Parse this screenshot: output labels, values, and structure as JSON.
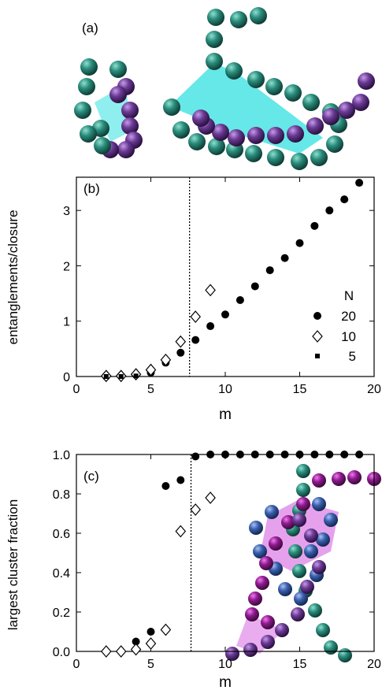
{
  "panel_a": {
    "label": "(a)"
  },
  "colors": {
    "teal": "#2a8c7c",
    "purple": "#6a3a94",
    "magenta": "#8e1a8e",
    "blue": "#3a5fae",
    "cyan_fill": "#33e0e0",
    "pink_fill": "#e08ae8"
  },
  "chart_data": [
    {
      "type": "scatter",
      "panel_label": "(b)",
      "xlabel": "m",
      "ylabel": "entanglements/closure",
      "xlim": [
        0,
        20
      ],
      "ylim": [
        0,
        3.6
      ],
      "xticks": [
        0,
        5,
        10,
        15,
        20
      ],
      "yticks": [
        0,
        1,
        2,
        3
      ],
      "vline_x": 7.6,
      "legend_title": "N",
      "legend_position": "right",
      "series": [
        {
          "name": "20",
          "marker": "filled-circle",
          "x": [
            2,
            3,
            4,
            5,
            6,
            7,
            8,
            9,
            10,
            11,
            12,
            13,
            14,
            15,
            16,
            17,
            18,
            19
          ],
          "y": [
            0.0,
            0.01,
            0.03,
            0.07,
            0.25,
            0.43,
            0.66,
            0.91,
            1.12,
            1.38,
            1.63,
            1.92,
            2.14,
            2.41,
            2.72,
            3.0,
            3.2,
            3.5
          ]
        },
        {
          "name": "10",
          "marker": "open-diamond",
          "x": [
            2,
            3,
            4,
            5,
            6,
            7,
            8,
            9
          ],
          "y": [
            0.01,
            0.01,
            0.04,
            0.12,
            0.3,
            0.63,
            1.08,
            1.56
          ]
        },
        {
          "name": "5",
          "marker": "filled-square",
          "x": [
            2,
            3,
            4
          ],
          "y": [
            0.0,
            0.0,
            0.01
          ]
        }
      ]
    },
    {
      "type": "scatter",
      "panel_label": "(c)",
      "xlabel": "m",
      "ylabel": "largest cluster fraction",
      "xlim": [
        0,
        20
      ],
      "ylim": [
        0,
        1.0
      ],
      "xticks": [
        0,
        5,
        10,
        15,
        20
      ],
      "yticks": [
        0.0,
        0.2,
        0.4,
        0.6,
        0.8,
        1.0
      ],
      "ytick_labels": [
        "0.0",
        "0.2",
        "0.4",
        "0.6",
        "0.8",
        "1.0"
      ],
      "vline_x": 7.7,
      "series": [
        {
          "name": "",
          "marker": "filled-circle",
          "x": [
            2,
            3,
            4,
            5,
            6,
            7,
            8,
            9,
            10,
            11,
            12,
            13,
            14,
            15,
            16,
            17,
            18,
            19
          ],
          "y": [
            0.0,
            0.0,
            0.05,
            0.1,
            0.84,
            0.87,
            0.99,
            1.0,
            1.0,
            1.0,
            1.0,
            1.0,
            1.0,
            1.0,
            1.0,
            1.0,
            1.0,
            1.0
          ]
        },
        {
          "name": "",
          "marker": "open-diamond",
          "x": [
            2,
            3,
            4,
            5,
            6,
            7,
            8,
            9
          ],
          "y": [
            0.0,
            0.0,
            0.01,
            0.04,
            0.11,
            0.61,
            0.72,
            0.78
          ]
        }
      ]
    }
  ]
}
